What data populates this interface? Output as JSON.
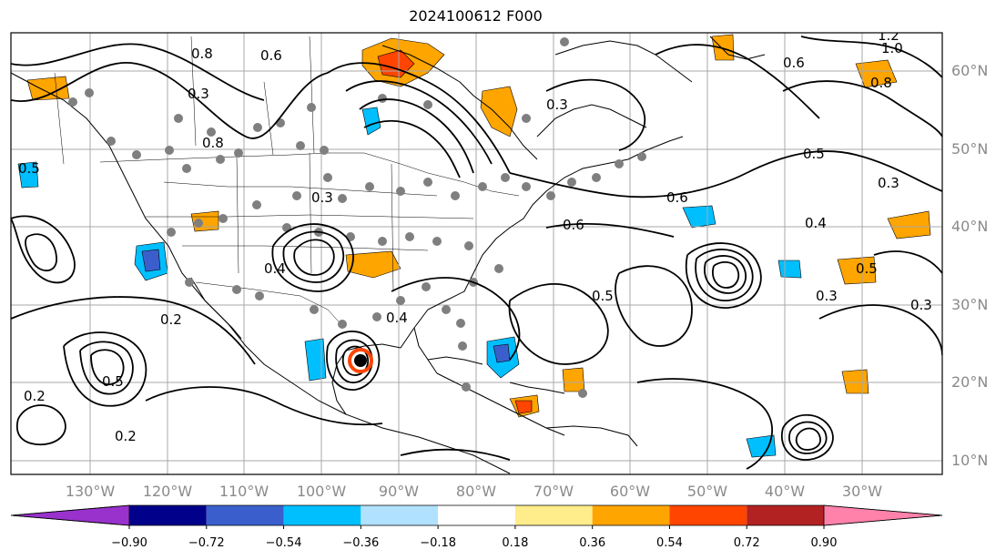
{
  "title": "2024100612 F000",
  "latitudes": [
    "60°N",
    "50°N",
    "40°N",
    "30°N",
    "20°N",
    "10°N"
  ],
  "longitudes": [
    "130°W",
    "120°W",
    "110°W",
    "100°W",
    "90°W",
    "80°W",
    "70°W",
    "60°W",
    "50°W",
    "40°W",
    "30°W"
  ],
  "colorbar": {
    "colors": [
      "#9932cc",
      "#00008b",
      "#3a5fcd",
      "#00bfff",
      "#b0e2ff",
      "#ffffff",
      "#ffec8b",
      "#ffa500",
      "#ff4500",
      "#b22222",
      "#ff82ab"
    ],
    "ticks": [
      "−0.90",
      "−0.72",
      "−0.54",
      "−0.36",
      "−0.18",
      "0.18",
      "0.36",
      "0.54",
      "0.72",
      "0.90"
    ]
  },
  "contour_labels": [
    "0.6",
    "0.8",
    "0.3",
    "0.8",
    "0.6",
    "0.5",
    "0.4",
    "0.3",
    "0.2",
    "0.2",
    "0.5",
    "0.2",
    "0.4",
    "0.6",
    "0.3",
    "0.5",
    "0.3",
    "0.6",
    "0.3",
    "0.4",
    "0.5",
    "0.3",
    "1.0",
    "1.2",
    "0.8",
    "0.5"
  ]
}
